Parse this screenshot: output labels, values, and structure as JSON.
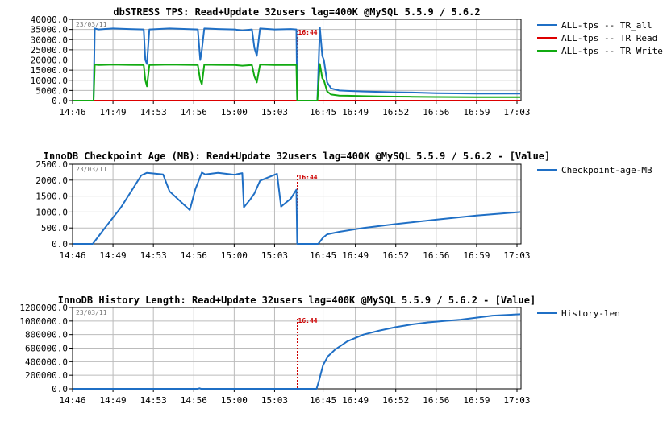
{
  "chart_data": [
    {
      "type": "line",
      "title": "dbSTRESS TPS: Read+Update 32users lag=400K @MySQL 5.5.9 / 5.6.2",
      "date_label": "23/03/11",
      "marker_label": "16:44",
      "marker_x": 27.8,
      "x_ticks": [
        {
          "t": 0,
          "label": "14:46"
        },
        {
          "t": 5,
          "label": "14:49"
        },
        {
          "t": 10,
          "label": "14:53"
        },
        {
          "t": 15,
          "label": "14:56"
        },
        {
          "t": 20,
          "label": "15:00"
        },
        {
          "t": 25,
          "label": "15:03"
        },
        {
          "t": 31,
          "label": "16:45"
        },
        {
          "t": 35,
          "label": "16:49"
        },
        {
          "t": 40,
          "label": "16:52"
        },
        {
          "t": 45,
          "label": "16:56"
        },
        {
          "t": 50,
          "label": "16:59"
        },
        {
          "t": 55,
          "label": "17:03"
        }
      ],
      "xlim": [
        0,
        55.5
      ],
      "ylim": [
        0,
        40000
      ],
      "y_ticks": [
        "0.0",
        "5000.0",
        "10000.0",
        "15000.0",
        "20000.0",
        "25000.0",
        "30000.0",
        "35000.0",
        "40000.0"
      ],
      "series": [
        {
          "name": "ALL-tps -- TR_all",
          "color": "#1f6fc5",
          "x": [
            0,
            2.6,
            2.75,
            3.2,
            5,
            7,
            8.8,
            9,
            9.2,
            9.5,
            12,
            15.5,
            15.8,
            16,
            16.3,
            18,
            20,
            21,
            22.2,
            22.5,
            22.8,
            23.2,
            25,
            27,
            27.7,
            27.8,
            30.3,
            30.6,
            30.9,
            31.1,
            31.5,
            32,
            33,
            34,
            36,
            38,
            40,
            42,
            45,
            50,
            55.4
          ],
          "y": [
            0,
            0,
            35500,
            35000,
            35500,
            35200,
            35000,
            20000,
            18000,
            35000,
            35500,
            35000,
            20000,
            25000,
            35500,
            35200,
            35000,
            34500,
            35000,
            26000,
            22000,
            35500,
            35000,
            35200,
            35000,
            0,
            0,
            36000,
            22000,
            20000,
            9000,
            6000,
            5000,
            4800,
            4500,
            4300,
            4100,
            4000,
            3700,
            3500,
            3500
          ]
        },
        {
          "name": "ALL-tps -- TR_Read",
          "color": "#dd0000",
          "x": [
            0,
            55.4
          ],
          "y": [
            0,
            0
          ]
        },
        {
          "name": "ALL-tps -- TR_Write",
          "color": "#11aa11",
          "x": [
            0,
            2.6,
            2.75,
            3.2,
            5,
            7,
            8.8,
            9,
            9.2,
            9.5,
            12,
            15.5,
            15.8,
            16,
            16.3,
            18,
            20,
            21,
            22.2,
            22.5,
            22.8,
            23.2,
            25,
            27,
            27.7,
            27.8,
            30.3,
            30.6,
            30.9,
            31.1,
            31.5,
            32,
            33,
            34,
            36,
            38,
            40,
            42,
            45,
            50,
            55.4
          ],
          "y": [
            0,
            0,
            17700,
            17500,
            17700,
            17600,
            17500,
            10000,
            7000,
            17500,
            17700,
            17500,
            10000,
            8000,
            17700,
            17600,
            17500,
            17200,
            17500,
            12000,
            9000,
            17700,
            17500,
            17600,
            17500,
            0,
            0,
            18000,
            11000,
            10000,
            4500,
            3000,
            2500,
            2400,
            2200,
            2100,
            2000,
            1900,
            1800,
            1700,
            1700
          ]
        }
      ]
    },
    {
      "type": "line",
      "title": "InnoDB Checkpoint Age (MB): Read+Update 32users lag=400K @MySQL 5.5.9 / 5.6.2 - [Value]",
      "date_label": "23/03/11",
      "marker_label": "16:44",
      "marker_x": 27.8,
      "x_ticks": [
        {
          "t": 0,
          "label": "14:46"
        },
        {
          "t": 5,
          "label": "14:49"
        },
        {
          "t": 10,
          "label": "14:53"
        },
        {
          "t": 15,
          "label": "14:56"
        },
        {
          "t": 20,
          "label": "15:00"
        },
        {
          "t": 25,
          "label": "15:03"
        },
        {
          "t": 31,
          "label": "16:45"
        },
        {
          "t": 35,
          "label": "16:49"
        },
        {
          "t": 40,
          "label": "16:52"
        },
        {
          "t": 45,
          "label": "16:56"
        },
        {
          "t": 50,
          "label": "16:59"
        },
        {
          "t": 55,
          "label": "17:03"
        }
      ],
      "xlim": [
        0,
        55.5
      ],
      "ylim": [
        0,
        2500
      ],
      "y_ticks": [
        "0.0",
        "500.0",
        "1000.0",
        "1500.0",
        "2000.0",
        "2500.0"
      ],
      "series": [
        {
          "name": "Checkpoint-age-MB",
          "color": "#1f6fc5",
          "x": [
            0,
            2.5,
            4,
            6,
            8.5,
            9.2,
            11.2,
            12,
            14.5,
            15.2,
            16,
            16.4,
            18,
            20,
            21,
            21.2,
            22,
            22.5,
            23.2,
            25.3,
            25.8,
            27,
            27.7,
            27.8,
            30.4,
            31,
            31.5,
            33,
            36,
            40,
            45,
            50,
            55.4
          ],
          "y": [
            0,
            0,
            500,
            1150,
            2150,
            2230,
            2180,
            1650,
            1060,
            1720,
            2240,
            2180,
            2230,
            2170,
            2220,
            1150,
            1400,
            1580,
            1980,
            2200,
            1170,
            1420,
            1700,
            0,
            0,
            200,
            300,
            380,
            500,
            620,
            760,
            890,
            1000
          ]
        }
      ]
    },
    {
      "type": "line",
      "title": "InnoDB History Length: Read+Update 32users lag=400K @MySQL 5.5.9 / 5.6.2 - [Value]",
      "date_label": "23/03/11",
      "marker_label": "16:44",
      "marker_x": 27.8,
      "x_ticks": [
        {
          "t": 0,
          "label": "14:46"
        },
        {
          "t": 5,
          "label": "14:49"
        },
        {
          "t": 10,
          "label": "14:53"
        },
        {
          "t": 15,
          "label": "14:56"
        },
        {
          "t": 20,
          "label": "15:00"
        },
        {
          "t": 25,
          "label": "15:03"
        },
        {
          "t": 31,
          "label": "16:45"
        },
        {
          "t": 35,
          "label": "16:49"
        },
        {
          "t": 40,
          "label": "16:52"
        },
        {
          "t": 45,
          "label": "16:56"
        },
        {
          "t": 50,
          "label": "16:59"
        },
        {
          "t": 55,
          "label": "17:03"
        }
      ],
      "xlim": [
        0,
        55.5
      ],
      "ylim": [
        0,
        1200000
      ],
      "y_ticks": [
        "0.0",
        "200000.0",
        "400000.0",
        "600000.0",
        "800000.0",
        "1000000.0",
        "1200000.0"
      ],
      "series": [
        {
          "name": "History-len",
          "color": "#1f6fc5",
          "x": [
            0,
            15.5,
            15.7,
            15.9,
            27.8,
            30.2,
            30.5,
            31,
            31.6,
            32.5,
            34,
            36,
            38,
            40,
            42,
            44,
            46,
            48,
            50,
            52,
            55.4
          ],
          "y": [
            0,
            0,
            8000,
            0,
            0,
            0,
            120000,
            350000,
            480000,
            580000,
            700000,
            800000,
            860000,
            910000,
            950000,
            980000,
            1000000,
            1020000,
            1050000,
            1080000,
            1100000
          ]
        }
      ]
    }
  ]
}
